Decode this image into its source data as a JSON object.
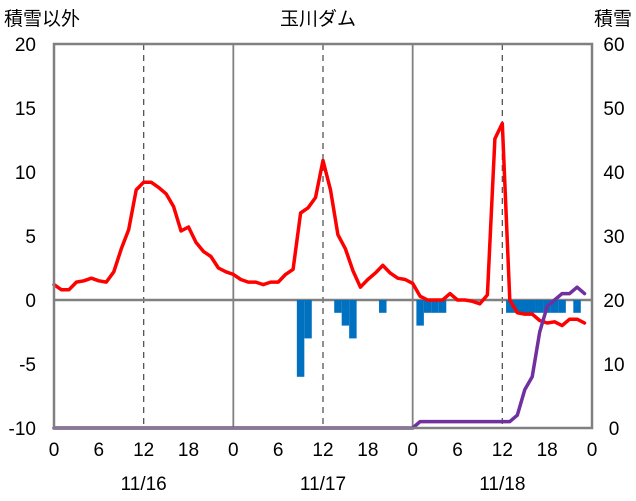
{
  "chart_data": {
    "type": "line",
    "title": "玉川ダム",
    "y_left_label": "積雪以外",
    "y_right_label": "積雪",
    "ylim_left": [
      -10,
      20
    ],
    "ylim_right": [
      0,
      60
    ],
    "y_left_ticks": [
      "20",
      "15",
      "10",
      "5",
      "0",
      "-5",
      "-10"
    ],
    "y_right_ticks": [
      "60",
      "50",
      "40",
      "30",
      "20",
      "10",
      "0"
    ],
    "x_hour_labels": [
      "0",
      "6",
      "12",
      "18",
      "0",
      "6",
      "12",
      "18",
      "0",
      "6",
      "12",
      "18",
      "0"
    ],
    "day_labels": [
      "11/16",
      "11/17",
      "11/18"
    ],
    "grid": "vertical dashed at 12h, solid at day boundaries",
    "series": [
      {
        "name": "",
        "type": "line",
        "axis": "left",
        "color": "#ff0000",
        "x": [
          0,
          1,
          2,
          3,
          4,
          5,
          6,
          7,
          8,
          9,
          10,
          11,
          12,
          13,
          14,
          15,
          16,
          17,
          18,
          19,
          20,
          21,
          22,
          23,
          24,
          25,
          26,
          27,
          28,
          29,
          30,
          31,
          32,
          33,
          34,
          35,
          36,
          37,
          38,
          39,
          40,
          41,
          42,
          43,
          44,
          45,
          46,
          47,
          48,
          49,
          50,
          51,
          52,
          53,
          54,
          55,
          56,
          57,
          58,
          59,
          60,
          61,
          62,
          63,
          64,
          65,
          66,
          67,
          68,
          69,
          70,
          71
        ],
        "values": [
          1.2,
          0.8,
          0.8,
          1.4,
          1.5,
          1.7,
          1.5,
          1.4,
          2.2,
          4.0,
          5.5,
          8.6,
          9.2,
          9.2,
          8.8,
          8.3,
          7.3,
          5.4,
          5.7,
          4.5,
          3.8,
          3.4,
          2.5,
          2.2,
          2.0,
          1.6,
          1.4,
          1.4,
          1.2,
          1.4,
          1.4,
          2.0,
          2.4,
          6.8,
          7.2,
          8.0,
          10.9,
          8.6,
          5.1,
          4.0,
          2.3,
          1.0,
          1.6,
          2.1,
          2.7,
          2.1,
          1.7,
          1.6,
          1.3,
          0.3,
          0.0,
          0.0,
          0.0,
          0.5,
          0.0,
          0.0,
          -0.1,
          -0.3,
          0.4,
          12.6,
          13.8,
          0.0,
          -1.0,
          -1.1,
          -1.1,
          -1.6,
          -1.8,
          -1.7,
          -2.0,
          -1.5,
          -1.5,
          -1.8
        ]
      },
      {
        "name": "",
        "type": "line",
        "axis": "right",
        "color": "#7030a0",
        "x": [
          0,
          48,
          49,
          50,
          51,
          52,
          53,
          54,
          55,
          56,
          57,
          58,
          59,
          60,
          61,
          62,
          63,
          64,
          65,
          66,
          67,
          68,
          69,
          70,
          71
        ],
        "values": [
          0,
          0,
          1,
          1,
          1,
          1,
          1,
          1,
          1,
          1,
          1,
          1,
          1,
          1,
          1,
          2,
          6,
          8,
          15,
          19,
          20,
          21,
          21,
          22,
          21
        ]
      },
      {
        "name": "",
        "type": "bar",
        "axis": "left",
        "color": "#0070c0",
        "x": [
          33,
          34,
          38,
          39,
          40,
          44,
          49,
          50,
          51,
          52,
          61,
          62,
          63,
          64,
          65,
          66,
          67,
          68,
          70
        ],
        "values": [
          -6,
          -3,
          -1,
          -2,
          -3,
          -1,
          -2,
          -1,
          -1,
          -1,
          -1,
          -1,
          -1,
          -1,
          -1,
          -1,
          -1,
          -1,
          -1
        ]
      }
    ]
  }
}
